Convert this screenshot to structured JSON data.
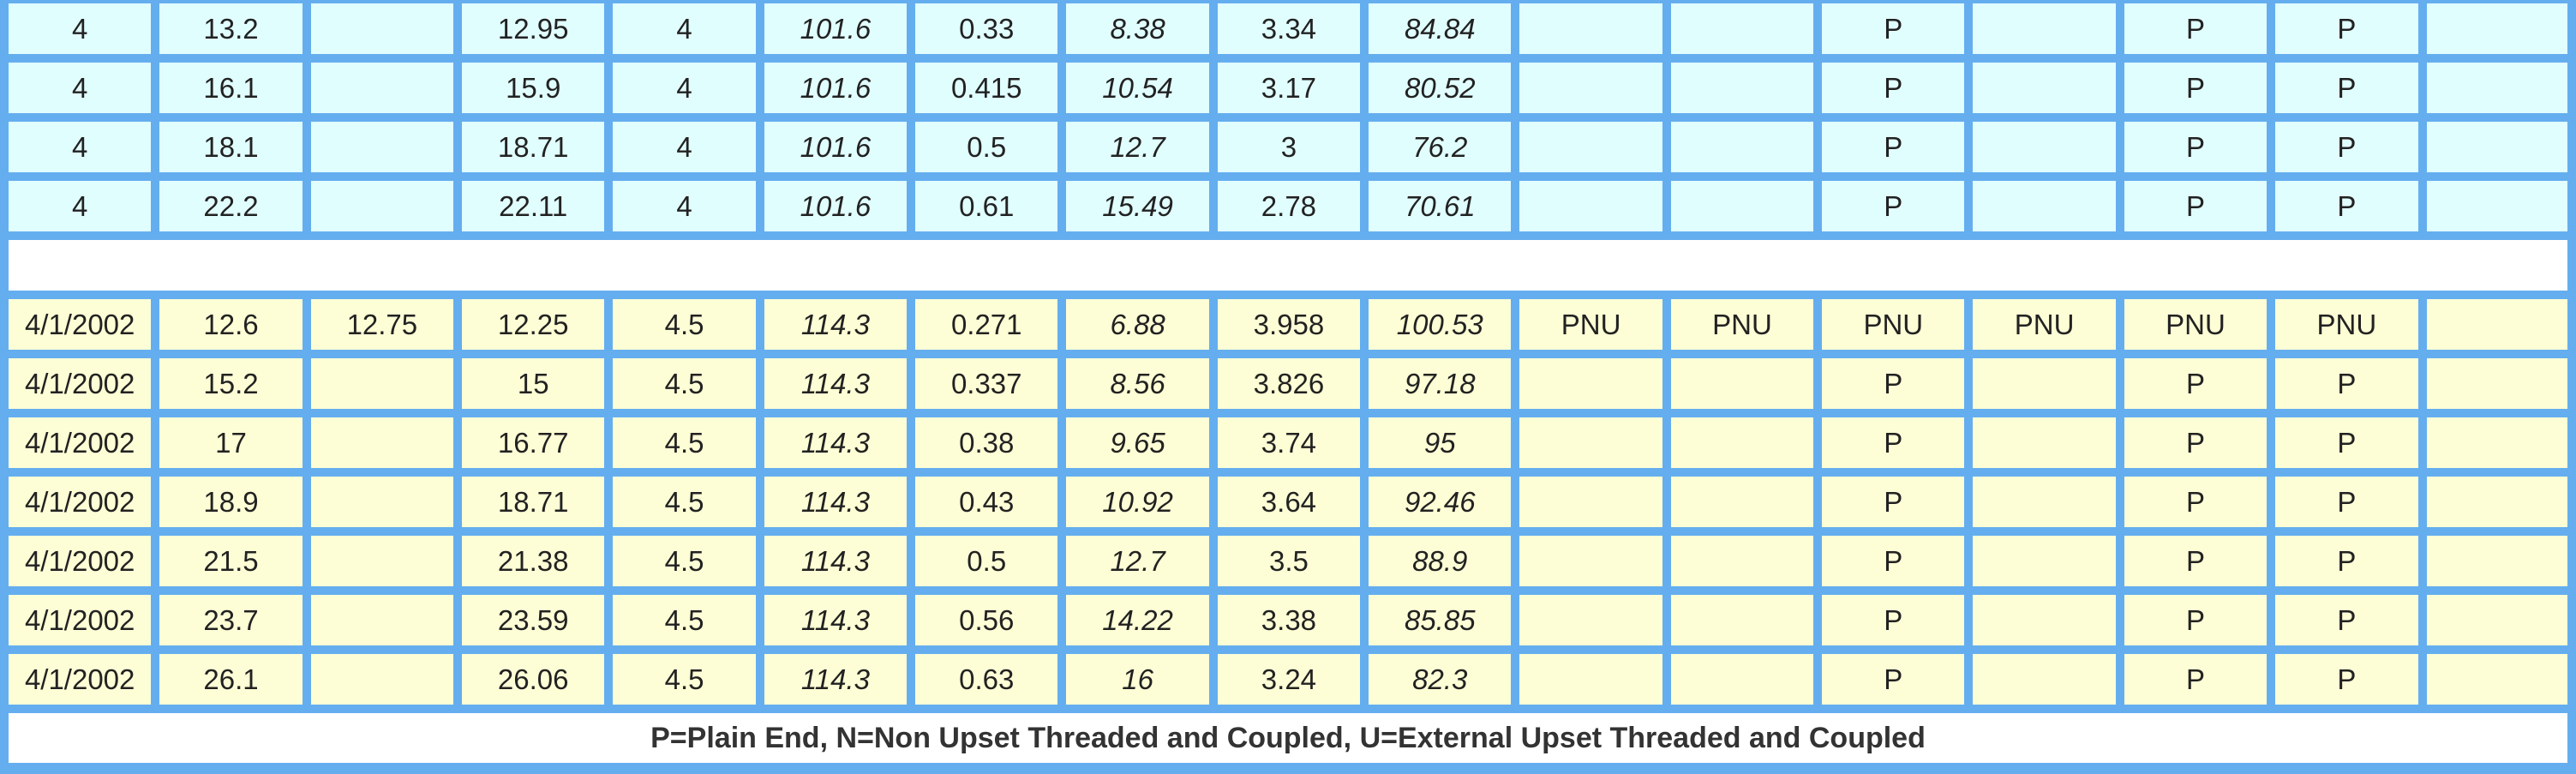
{
  "columns": [
    "size_in",
    "weight_lb_ft",
    "weight_upset",
    "weight_pe",
    "od_in",
    "od_mm",
    "wall_in",
    "wall_mm",
    "id_in",
    "id_mm",
    "h40",
    "j55",
    "k55",
    "m65",
    "n80",
    "l80",
    "p110"
  ],
  "italic_columns": [
    5,
    7,
    9
  ],
  "group_a": [
    [
      "4",
      "13.2",
      "",
      "12.95",
      "4",
      "101.6",
      "0.33",
      "8.38",
      "3.34",
      "84.84",
      "",
      "",
      "P",
      "",
      "P",
      "P",
      ""
    ],
    [
      "4",
      "16.1",
      "",
      "15.9",
      "4",
      "101.6",
      "0.415",
      "10.54",
      "3.17",
      "80.52",
      "",
      "",
      "P",
      "",
      "P",
      "P",
      ""
    ],
    [
      "4",
      "18.1",
      "",
      "18.71",
      "4",
      "101.6",
      "0.5",
      "12.7",
      "3",
      "76.2",
      "",
      "",
      "P",
      "",
      "P",
      "P",
      ""
    ],
    [
      "4",
      "22.2",
      "",
      "22.11",
      "4",
      "101.6",
      "0.61",
      "15.49",
      "2.78",
      "70.61",
      "",
      "",
      "P",
      "",
      "P",
      "P",
      ""
    ]
  ],
  "group_b": [
    [
      "4/1/2002",
      "12.6",
      "12.75",
      "12.25",
      "4.5",
      "114.3",
      "0.271",
      "6.88",
      "3.958",
      "100.53",
      "PNU",
      "PNU",
      "PNU",
      "PNU",
      "PNU",
      "PNU",
      ""
    ],
    [
      "4/1/2002",
      "15.2",
      "",
      "15",
      "4.5",
      "114.3",
      "0.337",
      "8.56",
      "3.826",
      "97.18",
      "",
      "",
      "P",
      "",
      "P",
      "P",
      ""
    ],
    [
      "4/1/2002",
      "17",
      "",
      "16.77",
      "4.5",
      "114.3",
      "0.38",
      "9.65",
      "3.74",
      "95",
      "",
      "",
      "P",
      "",
      "P",
      "P",
      ""
    ],
    [
      "4/1/2002",
      "18.9",
      "",
      "18.71",
      "4.5",
      "114.3",
      "0.43",
      "10.92",
      "3.64",
      "92.46",
      "",
      "",
      "P",
      "",
      "P",
      "P",
      ""
    ],
    [
      "4/1/2002",
      "21.5",
      "",
      "21.38",
      "4.5",
      "114.3",
      "0.5",
      "12.7",
      "3.5",
      "88.9",
      "",
      "",
      "P",
      "",
      "P",
      "P",
      ""
    ],
    [
      "4/1/2002",
      "23.7",
      "",
      "23.59",
      "4.5",
      "114.3",
      "0.56",
      "14.22",
      "3.38",
      "85.85",
      "",
      "",
      "P",
      "",
      "P",
      "P",
      ""
    ],
    [
      "4/1/2002",
      "26.1",
      "",
      "26.06",
      "4.5",
      "114.3",
      "0.63",
      "16",
      "3.24",
      "82.3",
      "",
      "",
      "P",
      "",
      "P",
      "P",
      ""
    ]
  ],
  "legend": "P=Plain End, N=Non Upset Threaded and Coupled, U=External Upset Threaded and Coupled",
  "colors": {
    "grid": "#64aeef",
    "group_a_fill": "#e1feff",
    "group_b_fill": "#fefed6"
  }
}
